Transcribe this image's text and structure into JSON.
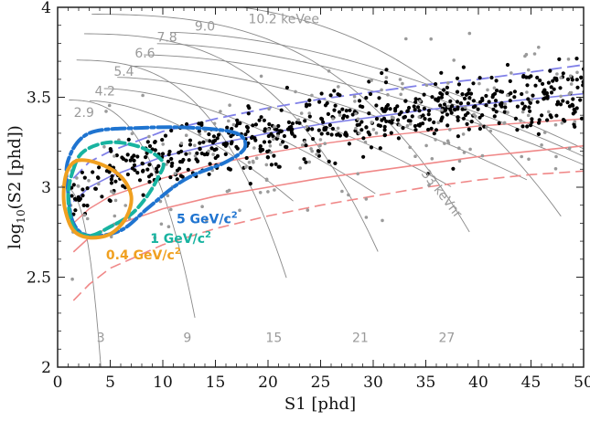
{
  "chart_data": {
    "type": "scatter",
    "title": "",
    "xlabel": "S1 [phd]",
    "ylabel_main": "log",
    "ylabel_sub": "10",
    "ylabel_rest": "(S2 [phd])",
    "xlim": [
      0,
      50
    ],
    "ylim": [
      2,
      4
    ],
    "x_ticks": [
      "0",
      "5",
      "10",
      "15",
      "20",
      "25",
      "30",
      "35",
      "40",
      "45",
      "50"
    ],
    "y_ticks": [
      "2",
      "2.5",
      "3",
      "3.5",
      "4"
    ],
    "grid": false,
    "er_energy_contours": [
      {
        "label": "2.9",
        "e": 2.9
      },
      {
        "label": "4.2",
        "e": 4.2
      },
      {
        "label": "5.4",
        "e": 5.4
      },
      {
        "label": "6.6",
        "e": 6.6
      },
      {
        "label": "7.8",
        "e": 7.8
      },
      {
        "label": "9.0",
        "e": 9.0
      },
      {
        "label": "10.2 keVee",
        "e": 10.2
      }
    ],
    "nr_energy_contours": [
      {
        "label": "3",
        "e": 3
      },
      {
        "label": "9",
        "e": 9
      },
      {
        "label": "15",
        "e": 15
      },
      {
        "label": "21",
        "e": 21
      },
      {
        "label": "27",
        "e": 27
      },
      {
        "label": "33 keVnr",
        "e": 33
      }
    ],
    "er_band": {
      "color": "#8080e8",
      "median": [
        [
          1.5,
          2.92
        ],
        [
          3,
          3.0
        ],
        [
          5,
          3.06
        ],
        [
          10,
          3.17
        ],
        [
          15,
          3.24
        ],
        [
          20,
          3.3
        ],
        [
          25,
          3.35
        ],
        [
          30,
          3.39
        ],
        [
          35,
          3.43
        ],
        [
          40,
          3.46
        ],
        [
          45,
          3.49
        ],
        [
          50,
          3.52
        ]
      ],
      "upper": [
        [
          1.5,
          3.05
        ],
        [
          3,
          3.14
        ],
        [
          5,
          3.2
        ],
        [
          10,
          3.31
        ],
        [
          15,
          3.38
        ],
        [
          20,
          3.44
        ],
        [
          25,
          3.49
        ],
        [
          30,
          3.53
        ],
        [
          35,
          3.57
        ],
        [
          40,
          3.6
        ],
        [
          45,
          3.64
        ],
        [
          50,
          3.68
        ]
      ]
    },
    "nr_band": {
      "color": "#f08888",
      "upper": [
        [
          1.5,
          2.8
        ],
        [
          3,
          2.88
        ],
        [
          5,
          2.95
        ],
        [
          10,
          3.05
        ],
        [
          15,
          3.13
        ],
        [
          20,
          3.19
        ],
        [
          25,
          3.24
        ],
        [
          30,
          3.28
        ],
        [
          35,
          3.31
        ],
        [
          40,
          3.34
        ],
        [
          45,
          3.36
        ],
        [
          50,
          3.38
        ]
      ],
      "median": [
        [
          1.5,
          2.64
        ],
        [
          3,
          2.72
        ],
        [
          5,
          2.78
        ],
        [
          10,
          2.88
        ],
        [
          15,
          2.95
        ],
        [
          20,
          3.0
        ],
        [
          25,
          3.05
        ],
        [
          30,
          3.09
        ],
        [
          35,
          3.13
        ],
        [
          40,
          3.17
        ],
        [
          45,
          3.2
        ],
        [
          50,
          3.23
        ]
      ],
      "lower": [
        [
          1.5,
          2.37
        ],
        [
          3,
          2.46
        ],
        [
          5,
          2.55
        ],
        [
          10,
          2.68
        ],
        [
          15,
          2.77
        ],
        [
          20,
          2.84
        ],
        [
          25,
          2.9
        ],
        [
          30,
          2.95
        ],
        [
          35,
          3.0
        ],
        [
          40,
          3.04
        ],
        [
          45,
          3.07
        ],
        [
          50,
          3.09
        ]
      ]
    },
    "signal_contours": [
      {
        "label_main": "5 GeV/c",
        "label_sup": "2",
        "color": "#1f74d0",
        "dash": "14,4,3,4",
        "points": [
          [
            1.0,
            2.97
          ],
          [
            1.0,
            3.15
          ],
          [
            3,
            3.3
          ],
          [
            8,
            3.33
          ],
          [
            13,
            3.33
          ],
          [
            17,
            3.3
          ],
          [
            17.8,
            3.22
          ],
          [
            16,
            3.14
          ],
          [
            13,
            3.07
          ],
          [
            11,
            3.0
          ],
          [
            8.5,
            2.88
          ],
          [
            6,
            2.76
          ],
          [
            3,
            2.73
          ],
          [
            1.5,
            2.8
          ]
        ]
      },
      {
        "label_main": "1 GeV/c",
        "label_sup": "2",
        "color": "#18b3a0",
        "dash": "10,5",
        "points": [
          [
            1.5,
            3.1
          ],
          [
            2.5,
            3.2
          ],
          [
            5,
            3.25
          ],
          [
            8,
            3.22
          ],
          [
            10,
            3.14
          ],
          [
            9.5,
            3.05
          ],
          [
            8.5,
            2.95
          ],
          [
            7,
            2.85
          ],
          [
            5,
            2.78
          ],
          [
            3,
            2.73
          ],
          [
            1.5,
            2.78
          ],
          [
            1.0,
            2.95
          ]
        ]
      },
      {
        "label_main": "0.4 GeV/c",
        "label_sup": "2",
        "color": "#f0a020",
        "dash": "",
        "points": [
          [
            1.0,
            3.1
          ],
          [
            2,
            3.15
          ],
          [
            4,
            3.13
          ],
          [
            6,
            3.06
          ],
          [
            7,
            2.95
          ],
          [
            6.5,
            2.83
          ],
          [
            5,
            2.74
          ],
          [
            3,
            2.72
          ],
          [
            1.5,
            2.76
          ],
          [
            0.7,
            2.88
          ],
          [
            0.6,
            3.0
          ]
        ]
      }
    ],
    "events_black_count": 620,
    "events_gray_count": 210
  }
}
